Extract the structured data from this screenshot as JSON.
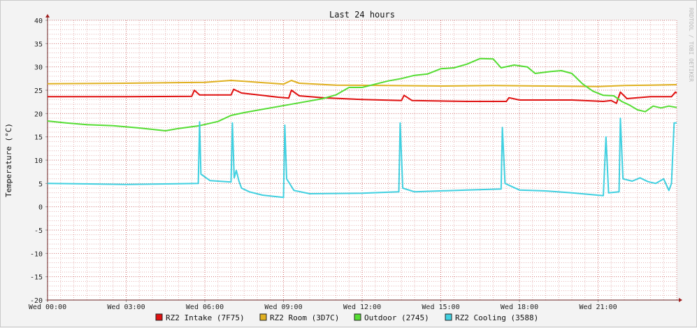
{
  "colors": {
    "background": "#f3f3f3",
    "plot_background": "#ffffff",
    "grid_minor": "#e6b3b3",
    "grid_major": "#d9a0a0",
    "axis": "#6b2020"
  },
  "chart_data": {
    "type": "line",
    "title": "Last 24 hours",
    "ylabel": "Temperature (°C)",
    "xlabel": "",
    "watermark": "RRDTOOL / TOBI OETIKER",
    "ylim": [
      -20,
      40
    ],
    "xlim": [
      "Wed 00:00",
      "Thu 00:00"
    ],
    "x_ticks": [
      "Wed 00:00",
      "Wed 03:00",
      "Wed 06:00",
      "Wed 09:00",
      "Wed 12:00",
      "Wed 15:00",
      "Wed 18:00",
      "Wed 21:00"
    ],
    "y_ticks": [
      40,
      35,
      30,
      25,
      20,
      15,
      10,
      5,
      0,
      -5,
      -10,
      -15,
      -20
    ],
    "grid": true,
    "legend_position": "bottom",
    "series": [
      {
        "name": "RZ2 Intake (7F75)",
        "color": "#e01010",
        "points": [
          [
            0,
            23.6
          ],
          [
            3,
            23.6
          ],
          [
            5.5,
            23.7
          ],
          [
            5.6,
            25.0
          ],
          [
            5.8,
            24.0
          ],
          [
            7.0,
            24.0
          ],
          [
            7.1,
            25.2
          ],
          [
            7.4,
            24.4
          ],
          [
            8.8,
            23.5
          ],
          [
            9.2,
            23.3
          ],
          [
            9.3,
            25.0
          ],
          [
            9.6,
            23.8
          ],
          [
            10.5,
            23.4
          ],
          [
            12,
            23.0
          ],
          [
            13.5,
            22.8
          ],
          [
            13.6,
            23.9
          ],
          [
            13.9,
            22.8
          ],
          [
            16,
            22.6
          ],
          [
            17.5,
            22.6
          ],
          [
            17.6,
            23.4
          ],
          [
            18,
            22.9
          ],
          [
            20,
            22.9
          ],
          [
            21.2,
            22.6
          ],
          [
            21.5,
            22.8
          ],
          [
            21.7,
            22.2
          ],
          [
            21.85,
            24.6
          ],
          [
            22.1,
            23.2
          ],
          [
            23,
            23.6
          ],
          [
            23.8,
            23.6
          ],
          [
            23.95,
            24.6
          ],
          [
            24,
            24.4
          ]
        ]
      },
      {
        "name": "RZ2 Room (3D7C)",
        "color": "#e0b020",
        "points": [
          [
            0,
            26.4
          ],
          [
            3,
            26.5
          ],
          [
            6,
            26.7
          ],
          [
            7,
            27.1
          ],
          [
            7.5,
            26.9
          ],
          [
            9,
            26.3
          ],
          [
            9.3,
            27.1
          ],
          [
            9.6,
            26.5
          ],
          [
            11,
            26.1
          ],
          [
            13,
            26.0
          ],
          [
            15,
            25.9
          ],
          [
            17,
            26.0
          ],
          [
            19,
            25.9
          ],
          [
            21,
            25.8
          ],
          [
            22,
            26.0
          ],
          [
            23,
            26.1
          ],
          [
            24,
            26.2
          ]
        ]
      },
      {
        "name": "Outdoor (2745)",
        "color": "#55dd33",
        "points": [
          [
            0,
            18.4
          ],
          [
            0.7,
            18.0
          ],
          [
            1.5,
            17.6
          ],
          [
            2.5,
            17.4
          ],
          [
            3.5,
            16.9
          ],
          [
            4.5,
            16.3
          ],
          [
            5.0,
            16.8
          ],
          [
            5.8,
            17.4
          ],
          [
            6.5,
            18.3
          ],
          [
            7.0,
            19.6
          ],
          [
            7.5,
            20.2
          ],
          [
            8.5,
            21.2
          ],
          [
            9.5,
            22.2
          ],
          [
            10.5,
            23.2
          ],
          [
            11.0,
            24.0
          ],
          [
            11.5,
            25.6
          ],
          [
            12,
            25.6
          ],
          [
            12.5,
            26.3
          ],
          [
            13,
            27.0
          ],
          [
            13.5,
            27.5
          ],
          [
            14,
            28.2
          ],
          [
            14.5,
            28.5
          ],
          [
            15,
            29.6
          ],
          [
            15.5,
            29.8
          ],
          [
            16,
            30.6
          ],
          [
            16.5,
            31.8
          ],
          [
            17,
            31.7
          ],
          [
            17.3,
            29.8
          ],
          [
            17.8,
            30.4
          ],
          [
            18.3,
            30.0
          ],
          [
            18.6,
            28.6
          ],
          [
            19.2,
            29.0
          ],
          [
            19.6,
            29.2
          ],
          [
            20,
            28.6
          ],
          [
            20.4,
            26.4
          ],
          [
            20.8,
            24.8
          ],
          [
            21.2,
            23.9
          ],
          [
            21.6,
            23.8
          ],
          [
            21.9,
            22.6
          ],
          [
            22.2,
            21.8
          ],
          [
            22.5,
            20.8
          ],
          [
            22.8,
            20.4
          ],
          [
            23.1,
            21.6
          ],
          [
            23.4,
            21.2
          ],
          [
            23.7,
            21.6
          ],
          [
            24,
            21.3
          ]
        ]
      },
      {
        "name": "RZ2 Cooling (3588)",
        "color": "#40d0e0",
        "points": [
          [
            0,
            5.0
          ],
          [
            3,
            4.8
          ],
          [
            5.75,
            5.0
          ],
          [
            5.8,
            18.2
          ],
          [
            5.85,
            7.0
          ],
          [
            6.2,
            5.6
          ],
          [
            7.0,
            5.3
          ],
          [
            7.05,
            18.0
          ],
          [
            7.12,
            6.2
          ],
          [
            7.2,
            7.8
          ],
          [
            7.3,
            5.5
          ],
          [
            7.4,
            4.0
          ],
          [
            7.7,
            3.2
          ],
          [
            8.2,
            2.5
          ],
          [
            9.0,
            2.0
          ],
          [
            9.05,
            17.5
          ],
          [
            9.12,
            6.0
          ],
          [
            9.4,
            3.5
          ],
          [
            10,
            2.8
          ],
          [
            12,
            2.9
          ],
          [
            13.4,
            3.2
          ],
          [
            13.45,
            18.0
          ],
          [
            13.55,
            4.0
          ],
          [
            14,
            3.2
          ],
          [
            16,
            3.6
          ],
          [
            17.3,
            3.8
          ],
          [
            17.35,
            17.0
          ],
          [
            17.45,
            5.0
          ],
          [
            18,
            3.6
          ],
          [
            19,
            3.4
          ],
          [
            20,
            3.0
          ],
          [
            21.2,
            2.4
          ],
          [
            21.3,
            15.0
          ],
          [
            21.4,
            3.0
          ],
          [
            21.8,
            3.2
          ],
          [
            21.85,
            19.0
          ],
          [
            21.95,
            6.0
          ],
          [
            22.3,
            5.5
          ],
          [
            22.6,
            6.2
          ],
          [
            22.9,
            5.4
          ],
          [
            23.2,
            5.0
          ],
          [
            23.5,
            6.0
          ],
          [
            23.7,
            3.5
          ],
          [
            23.8,
            5.0
          ],
          [
            23.9,
            18.0
          ],
          [
            24,
            18.0
          ]
        ]
      }
    ]
  }
}
